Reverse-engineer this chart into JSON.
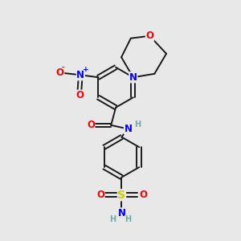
{
  "background_color": "#e8e8e8",
  "bond_color": "#1a1a1a",
  "atom_colors": {
    "O": "#ff0000",
    "N": "#0000ff",
    "S": "#cccc00",
    "C": "#1a1a1a",
    "H": "#6aacac"
  },
  "font_size": 8.5,
  "fig_size": [
    3.0,
    3.0
  ],
  "dpi": 100
}
